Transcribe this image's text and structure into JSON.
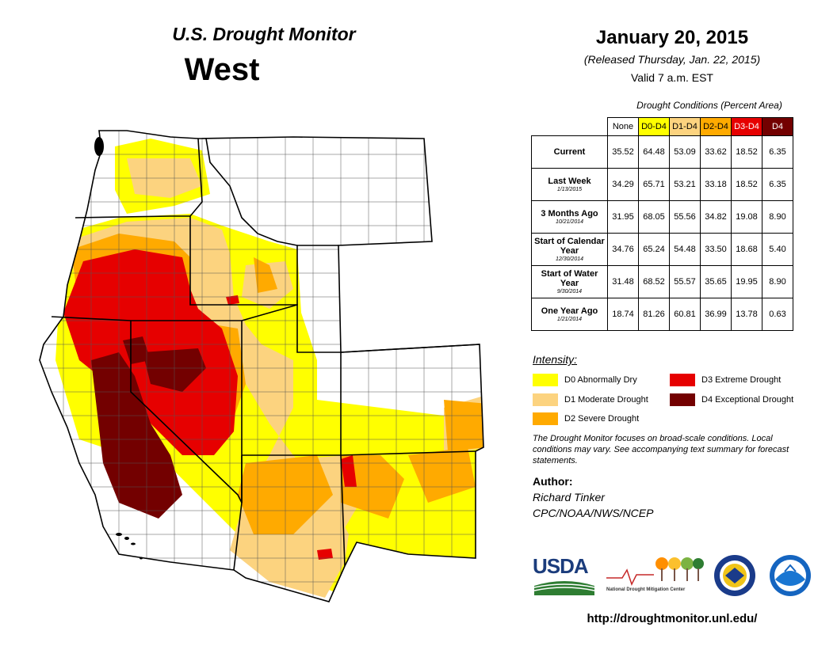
{
  "header": {
    "series_title": "U.S. Drought Monitor",
    "region": "West",
    "date": "January 20, 2015",
    "released": "(Released Thursday, Jan. 22, 2015)",
    "valid": "Valid  7 a.m. EST"
  },
  "conditions": {
    "title": "Drought Conditions (Percent Area)",
    "columns": [
      "None",
      "D0-D4",
      "D1-D4",
      "D2-D4",
      "D3-D4",
      "D4"
    ],
    "rows": [
      {
        "label": "Current",
        "sub": "",
        "values": [
          "35.52",
          "64.48",
          "53.09",
          "33.62",
          "18.52",
          "6.35"
        ]
      },
      {
        "label": "Last Week",
        "sub": "1/13/2015",
        "values": [
          "34.29",
          "65.71",
          "53.21",
          "33.18",
          "18.52",
          "6.35"
        ]
      },
      {
        "label": "3 Months Ago",
        "sub": "10/21/2014",
        "values": [
          "31.95",
          "68.05",
          "55.56",
          "34.82",
          "19.08",
          "8.90"
        ]
      },
      {
        "label": "Start of Calendar Year",
        "sub": "12/30/2014",
        "values": [
          "34.76",
          "65.24",
          "54.48",
          "33.50",
          "18.68",
          "5.40"
        ]
      },
      {
        "label": "Start of Water Year",
        "sub": "9/30/2014",
        "values": [
          "31.48",
          "68.52",
          "55.57",
          "35.65",
          "19.95",
          "8.90"
        ]
      },
      {
        "label": "One Year Ago",
        "sub": "1/21/2014",
        "values": [
          "18.74",
          "81.26",
          "60.81",
          "36.99",
          "13.78",
          "0.63"
        ]
      }
    ]
  },
  "legend": {
    "title": "Intensity:",
    "items": [
      {
        "label": "D0 Abnormally Dry",
        "color": "#ffff00"
      },
      {
        "label": "D1 Moderate Drought",
        "color": "#fcd37f"
      },
      {
        "label": "D2 Severe Drought",
        "color": "#ffaa00"
      },
      {
        "label": "D3 Extreme Drought",
        "color": "#e60000"
      },
      {
        "label": "D4 Exceptional Drought",
        "color": "#730000"
      }
    ]
  },
  "note": "The Drought Monitor focuses on broad-scale conditions. Local conditions may vary. See accompanying text summary for forecast statements.",
  "author": {
    "label": "Author:",
    "name": "Richard Tinker",
    "org": "CPC/NOAA/NWS/NCEP"
  },
  "logos": {
    "usda": "USDA",
    "ndmc": "National Drought Mitigation Center",
    "commerce": "department-of-commerce-seal",
    "noaa": "noaa-logo"
  },
  "url": "http://droughtmonitor.unl.edu/",
  "map": {
    "region": "West",
    "states": [
      "Washington",
      "Oregon",
      "California",
      "Idaho",
      "Nevada",
      "Montana",
      "Wyoming",
      "Utah",
      "Colorado",
      "Arizona",
      "New Mexico"
    ],
    "colors": {
      "none": "#ffffff",
      "d0": "#ffff00",
      "d1": "#fcd37f",
      "d2": "#ffaa00",
      "d3": "#e60000",
      "d4": "#730000",
      "border": "#000000",
      "county": "#444444"
    }
  }
}
